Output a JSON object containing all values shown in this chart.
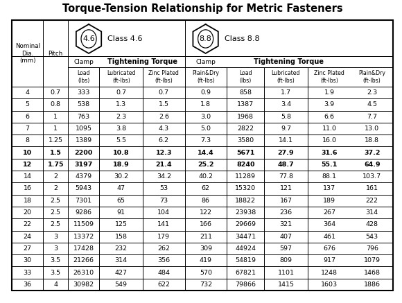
{
  "title": "Torque-Tension Relationship for Metric Fasteners",
  "rows": [
    [
      "4",
      "0.7",
      "333",
      "0.7",
      "0.7",
      "0.9",
      "858",
      "1.7",
      "1.9",
      "2.3"
    ],
    [
      "5",
      "0.8",
      "538",
      "1.3",
      "1.5",
      "1.8",
      "1387",
      "3.4",
      "3.9",
      "4.5"
    ],
    [
      "6",
      "1",
      "763",
      "2.3",
      "2.6",
      "3.0",
      "1968",
      "5.8",
      "6.6",
      "7.7"
    ],
    [
      "7",
      "1",
      "1095",
      "3.8",
      "4.3",
      "5.0",
      "2822",
      "9.7",
      "11.0",
      "13.0"
    ],
    [
      "8",
      "1.25",
      "1389",
      "5.5",
      "6.2",
      "7.3",
      "3580",
      "14.1",
      "16.0",
      "18.8"
    ],
    [
      "10",
      "1.5",
      "2200",
      "10.8",
      "12.3",
      "14.4",
      "5671",
      "27.9",
      "31.6",
      "37.2"
    ],
    [
      "12",
      "1.75",
      "3197",
      "18.9",
      "21.4",
      "25.2",
      "8240",
      "48.7",
      "55.1",
      "64.9"
    ],
    [
      "14",
      "2",
      "4379",
      "30.2",
      "34.2",
      "40.2",
      "11289",
      "77.8",
      "88.1",
      "103.7"
    ],
    [
      "16",
      "2",
      "5943",
      "47",
      "53",
      "62",
      "15320",
      "121",
      "137",
      "161"
    ],
    [
      "18",
      "2.5",
      "7301",
      "65",
      "73",
      "86",
      "18822",
      "167",
      "189",
      "222"
    ],
    [
      "20",
      "2.5",
      "9286",
      "91",
      "104",
      "122",
      "23938",
      "236",
      "267",
      "314"
    ],
    [
      "22",
      "2.5",
      "11509",
      "125",
      "141",
      "166",
      "29669",
      "321",
      "364",
      "428"
    ],
    [
      "24",
      "3",
      "13372",
      "158",
      "179",
      "211",
      "34471",
      "407",
      "461",
      "543"
    ],
    [
      "27",
      "3",
      "17428",
      "232",
      "262",
      "309",
      "44924",
      "597",
      "676",
      "796"
    ],
    [
      "30",
      "3.5",
      "21266",
      "314",
      "356",
      "419",
      "54819",
      "809",
      "917",
      "1079"
    ],
    [
      "33",
      "3.5",
      "26310",
      "427",
      "484",
      "570",
      "67821",
      "1101",
      "1248",
      "1468"
    ],
    [
      "36",
      "4",
      "30982",
      "549",
      "622",
      "732",
      "79866",
      "1415",
      "1603",
      "1886"
    ]
  ],
  "bold_pitch_rows": [
    5,
    6
  ],
  "blue_rows": [
    5,
    6
  ],
  "bg_color": "#ffffff",
  "class46_label": "4.6",
  "class46_text": "Class 4.6",
  "class88_label": "8.8",
  "class88_text": "Class 8.8",
  "col_widths_rel": [
    42,
    33,
    42,
    58,
    56,
    56,
    50,
    58,
    58,
    56
  ],
  "lw_outer": 1.5,
  "lw_inner": 0.7,
  "data_fontsize": 6.8,
  "header_fontsize": 6.5,
  "title_fontsize": 10.5
}
